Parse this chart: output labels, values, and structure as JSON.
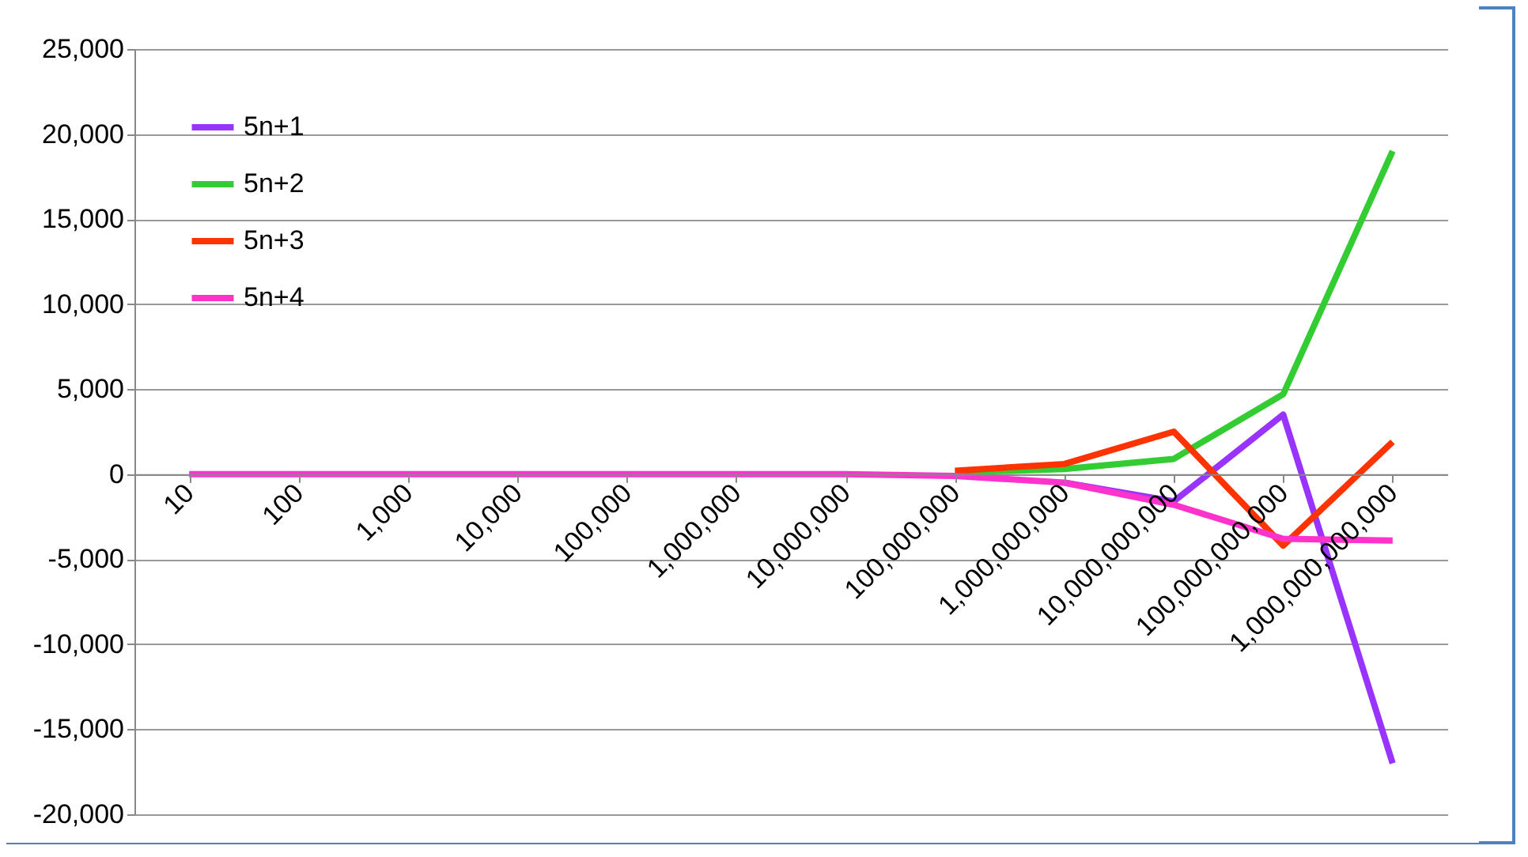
{
  "chart_data": {
    "type": "line",
    "categories": [
      "10",
      "100",
      "1,000",
      "10,000",
      "100,000",
      "1,000,000",
      "10,000,000",
      "100,000,000",
      "1,000,000,000",
      "10,000,000,000",
      "100,000,000,000",
      "1,000,000,000,000"
    ],
    "series": [
      {
        "name": "5n+1",
        "color": "#9933ff",
        "values": [
          null,
          null,
          null,
          null,
          null,
          null,
          null,
          null,
          -500,
          -1600,
          3500,
          -17000
        ]
      },
      {
        "name": "5n+2",
        "color": "#33cc33",
        "values": [
          null,
          null,
          null,
          null,
          null,
          null,
          null,
          100,
          300,
          900,
          4700,
          19000
        ]
      },
      {
        "name": "5n+3",
        "color": "#ff3300",
        "values": [
          null,
          null,
          null,
          null,
          null,
          null,
          null,
          200,
          600,
          2500,
          -4200,
          1900
        ]
      },
      {
        "name": "5n+4",
        "color": "#ff33cc",
        "values": [
          0,
          0,
          0,
          0,
          0,
          0,
          0,
          -100,
          -500,
          -1800,
          -3800,
          -3900
        ]
      }
    ],
    "ylim": [
      -20000,
      25000
    ],
    "yticks": [
      {
        "value": -20000,
        "label": "-20,000"
      },
      {
        "value": -15000,
        "label": "-15,000"
      },
      {
        "value": -10000,
        "label": "-10,000"
      },
      {
        "value": -5000,
        "label": "-5,000"
      },
      0,
      {
        "value": 5000,
        "label": "5,000"
      },
      {
        "value": 10000,
        "label": "10,000"
      },
      {
        "value": 15000,
        "label": "15,000"
      },
      {
        "value": 20000,
        "label": "20,000"
      },
      {
        "value": 25000,
        "label": "25,000"
      }
    ],
    "grid": "y",
    "legend": "top left",
    "marker": "none",
    "line_style": "solid"
  }
}
